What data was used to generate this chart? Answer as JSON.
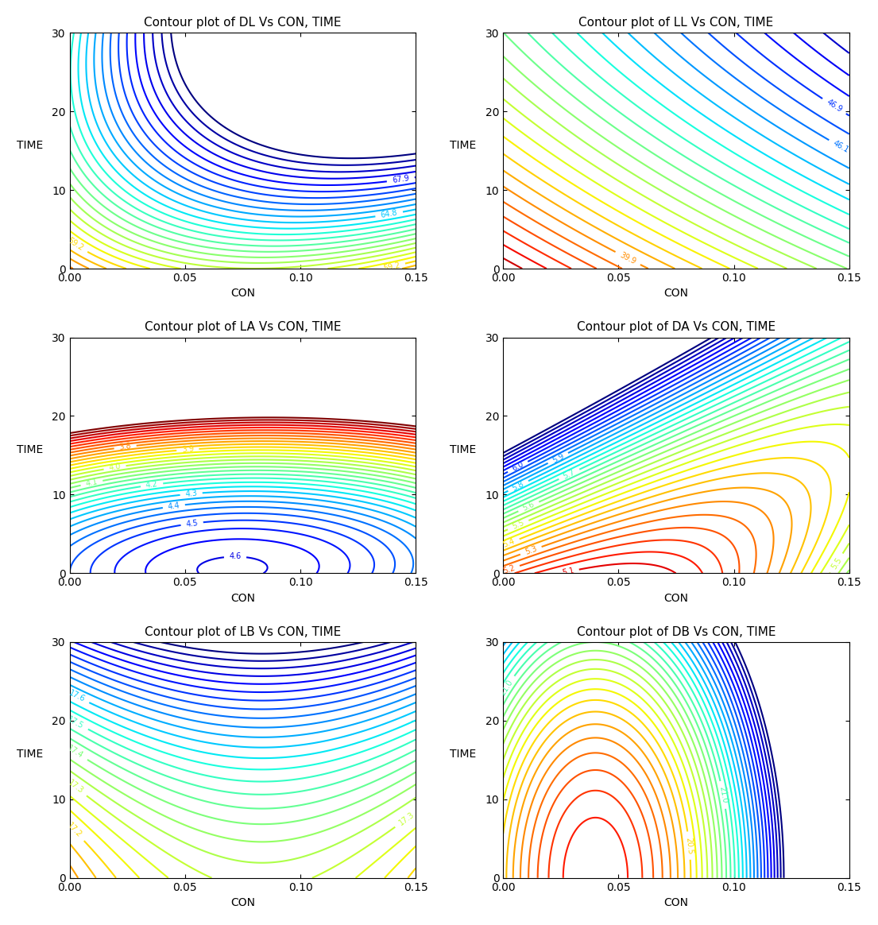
{
  "plots": [
    {
      "title": "Contour plot of DL Vs CON, TIME",
      "xlabel": "CON",
      "ylabel": "TIME",
      "xlim": [
        0.0,
        0.15
      ],
      "ylim": [
        0,
        30
      ],
      "xticks": [
        0.0,
        0.05,
        0.1,
        0.15
      ],
      "yticks": [
        0,
        10,
        20,
        30
      ],
      "model": "DL",
      "row": 0,
      "col": 0
    },
    {
      "title": "Contour plot of LL Vs CON, TIME",
      "xlabel": "CON",
      "ylabel": "TIME",
      "xlim": [
        0.0,
        0.15
      ],
      "ylim": [
        0,
        30
      ],
      "xticks": [
        0.0,
        0.05,
        0.1,
        0.15
      ],
      "yticks": [
        0,
        10,
        20,
        30
      ],
      "model": "LL",
      "row": 0,
      "col": 1
    },
    {
      "title": "Contour plot of LA Vs CON, TIME",
      "xlabel": "CON",
      "ylabel": "TIME",
      "xlim": [
        0.0,
        0.15
      ],
      "ylim": [
        0,
        30
      ],
      "xticks": [
        0.0,
        0.05,
        0.1,
        0.15
      ],
      "yticks": [
        0,
        10,
        20,
        30
      ],
      "model": "LA",
      "row": 1,
      "col": 0
    },
    {
      "title": "Contour plot of DA Vs CON, TIME",
      "xlabel": "CON",
      "ylabel": "TIME",
      "xlim": [
        0.0,
        0.15
      ],
      "ylim": [
        0,
        30
      ],
      "xticks": [
        0.0,
        0.05,
        0.1,
        0.15
      ],
      "yticks": [
        0,
        10,
        20,
        30
      ],
      "model": "DA",
      "row": 1,
      "col": 1
    },
    {
      "title": "Contour plot of LB Vs CON, TIME",
      "xlabel": "CON",
      "ylabel": "TIME",
      "xlim": [
        0.0,
        0.15
      ],
      "ylim": [
        0,
        30
      ],
      "xticks": [
        0.0,
        0.05,
        0.1,
        0.15
      ],
      "yticks": [
        0,
        10,
        20,
        30
      ],
      "model": "LB",
      "row": 2,
      "col": 0
    },
    {
      "title": "Contour plot of DB Vs CON, TIME",
      "xlabel": "CON",
      "ylabel": "TIME",
      "xlim": [
        0.0,
        0.15
      ],
      "ylim": [
        0,
        30
      ],
      "xticks": [
        0.0,
        0.05,
        0.1,
        0.15
      ],
      "yticks": [
        0,
        10,
        20,
        30
      ],
      "model": "DB",
      "row": 2,
      "col": 1
    }
  ],
  "background_color": "#ffffff",
  "nlevels": 30
}
